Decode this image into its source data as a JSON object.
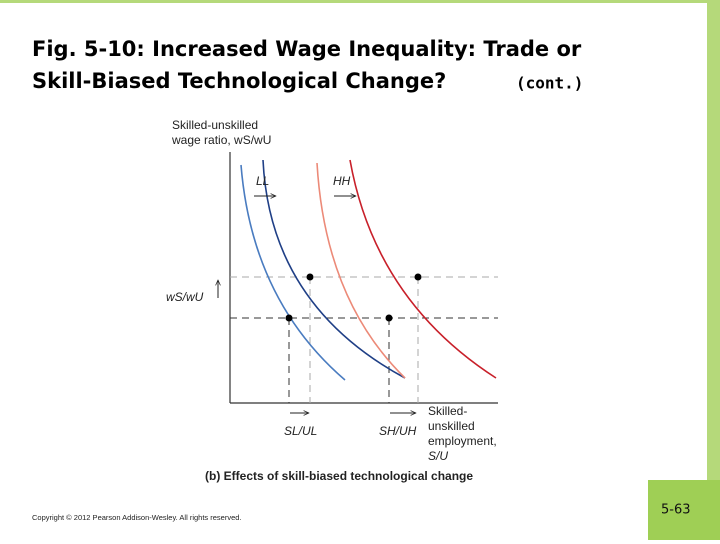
{
  "slide": {
    "title_line1": "Fig. 5-10:  Increased Wage Inequality: Trade or",
    "title_line2": "Skill-Biased Technological Change?",
    "title_suffix": "(cont.)",
    "y_axis_label_line1": "Skilled-unskilled",
    "y_axis_label_line2": "wage ratio, wS/wU",
    "curve_ll": "LL",
    "curve_hh": "HH",
    "y_marker": "wS/wU",
    "x_marker_low": "SL/UL",
    "x_marker_high": "SH/UH",
    "x_axis_label": [
      "Skilled-",
      "unskilled",
      "employment,",
      "S/U"
    ],
    "caption": "(b) Effects of skill-biased technological change",
    "copyright": "Copyright © 2012 Pearson Addison-Wesley. All rights reserved.",
    "page_number": "5-63"
  }
}
